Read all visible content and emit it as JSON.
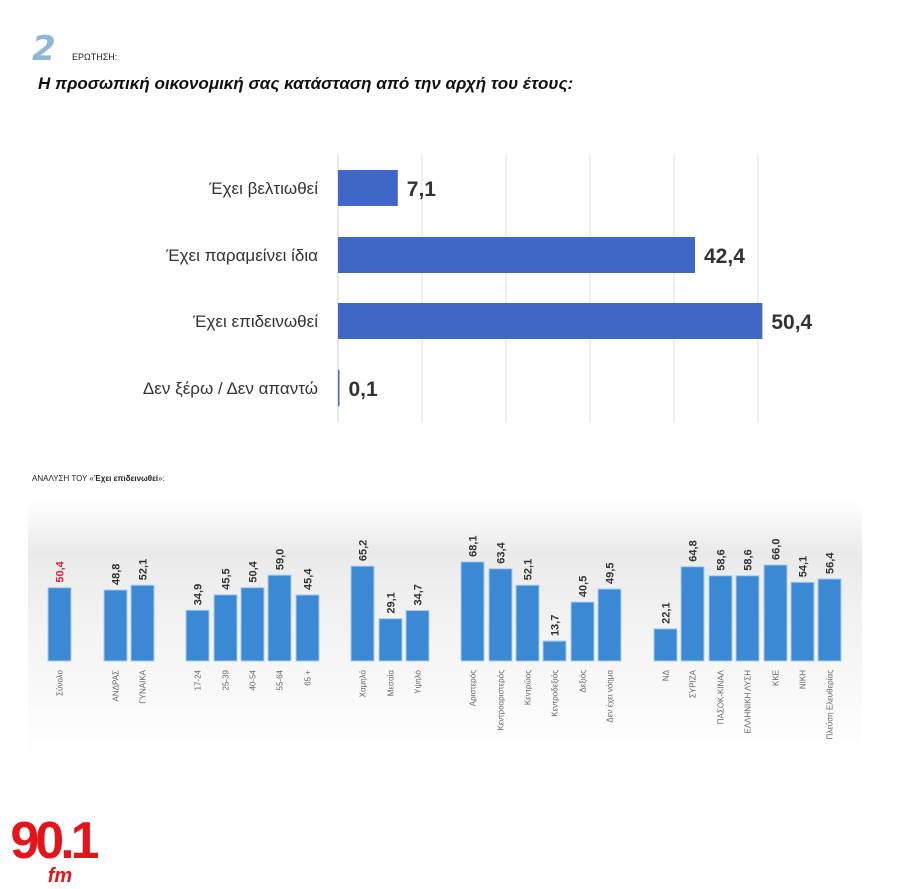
{
  "header": {
    "question_number": "2",
    "question_label": "ΕΡΩΤΗΣΗ:",
    "title": "Η προσωπική οικονομική σας κατάσταση από την αρχή του έτους:"
  },
  "breakdown_title_prefix": "ΑΝΑΛΥΣΗ ΤΟΥ «",
  "breakdown_title_bold": "Έχει επιδεινωθεί",
  "breakdown_title_suffix": "»:",
  "logo": {
    "text": "90.1",
    "sub": "fm",
    "color": "#e3151a"
  },
  "chart_data": [
    {
      "type": "bar",
      "orientation": "horizontal",
      "categories": [
        "Έχει βελτιωθεί",
        "Έχει παραμείνει ίδια",
        "Έχει επιδεινωθεί",
        "Δεν ξέρω / Δεν απαντώ"
      ],
      "values": [
        7.1,
        42.4,
        50.4,
        0.1
      ],
      "value_labels": [
        "7,1",
        "42,4",
        "50,4",
        "0,1"
      ],
      "color": "#3f68c6",
      "grid": true
    },
    {
      "type": "bar",
      "orientation": "vertical",
      "categories": [
        "Σύνολο",
        "ΑΝΔΡΑΣ",
        "ΓΥΝΑΙΚΑ",
        "17-24",
        "25-39",
        "40-54",
        "55-64",
        "65 +",
        "Χαμηλό",
        "Μεσαία",
        "Υψηλό",
        "Αριστερός",
        "Κεντροαριστερός",
        "Κεντρώος",
        "Κεντροδεξιός",
        "Δεξιός",
        "Δεν έχει νόημα",
        "ΝΔ",
        "ΣΥΡΙΖΑ",
        "ΠΑΣΟΚ-ΚΙΝΑΛ",
        "ΕΛΛΗΝΙΚΗ ΛΥΣΗ",
        "ΚΚΕ",
        "ΝΙΚΗ",
        "Πλεύση Ελευθερίας"
      ],
      "values": [
        50.4,
        48.8,
        52.1,
        34.9,
        45.5,
        50.4,
        59.0,
        45.4,
        65.2,
        29.1,
        34.7,
        68.1,
        63.4,
        52.1,
        13.7,
        40.5,
        49.5,
        22.1,
        64.8,
        58.6,
        58.6,
        66.0,
        54.1,
        56.4
      ],
      "value_labels": [
        "50,4",
        "48,8",
        "52,1",
        "34,9",
        "45,5",
        "50,4",
        "59,0",
        "45,4",
        "65,2",
        "29,1",
        "34,7",
        "68,1",
        "63,4",
        "52,1",
        "13,7",
        "40,5",
        "49,5",
        "22,1",
        "64,8",
        "58,6",
        "58,6",
        "66,0",
        "54,1",
        "56,4"
      ],
      "color": "#3b88d4",
      "highlight_color": "#e0203a",
      "highlight_index": 0
    }
  ]
}
